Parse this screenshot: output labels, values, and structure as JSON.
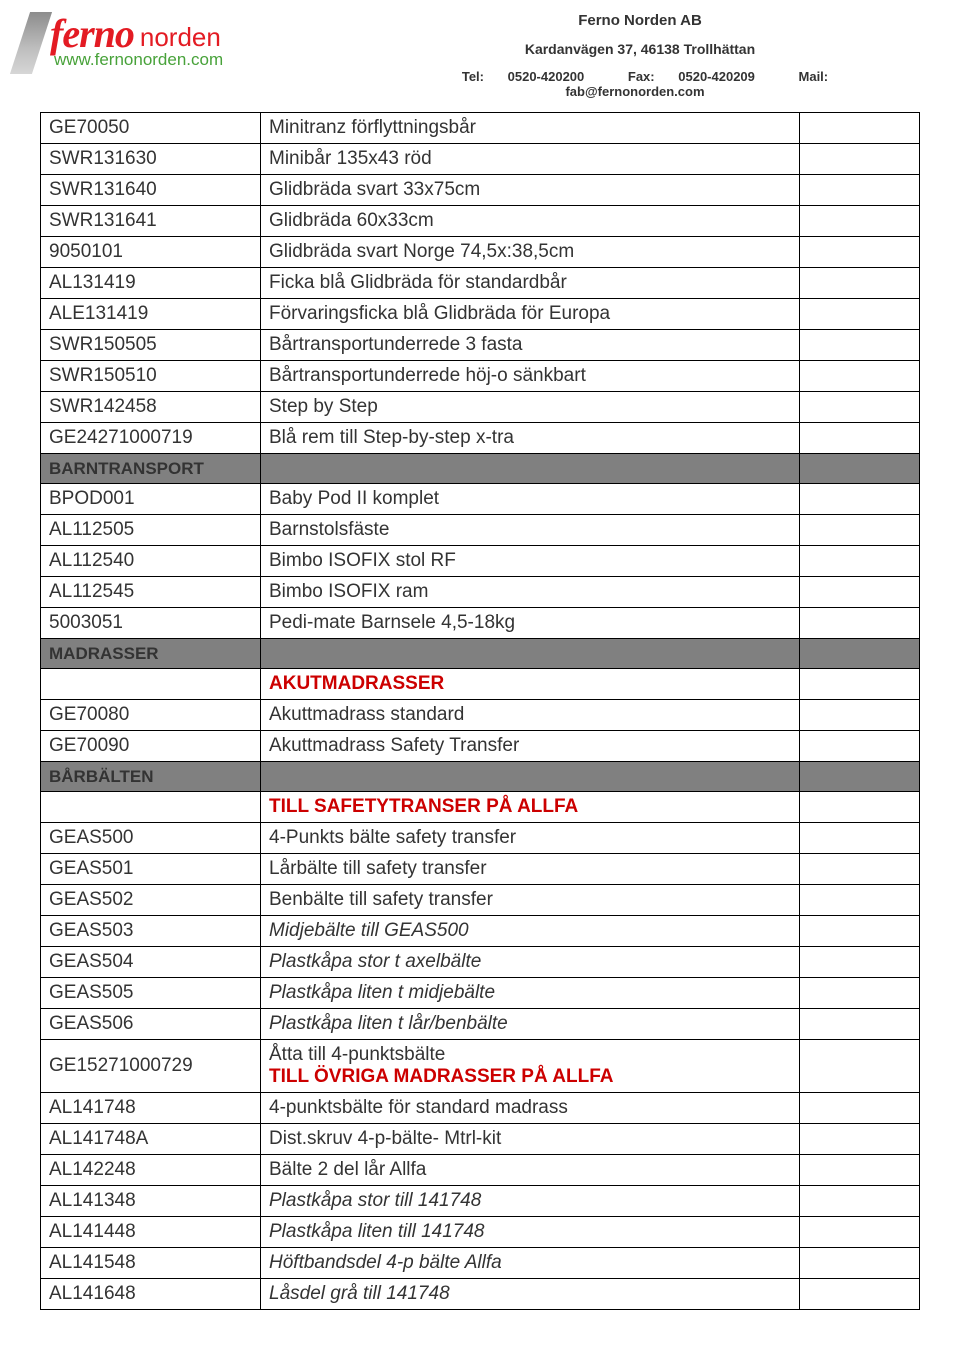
{
  "header": {
    "company": "Ferno Norden AB",
    "address": "Kardanvägen 37, 46138 Trollhättan",
    "tel_label": "Tel:",
    "tel": "0520-420200",
    "fax_label": "Fax:",
    "fax": "0520-420209",
    "mail_label": "Mail:",
    "mail": "fab@fernonorden.com",
    "logo_main": "ferno",
    "logo_sub": "norden",
    "logo_url": "www.fernonorden.com"
  },
  "rows": [
    {
      "type": "item",
      "code": "GE70050",
      "desc": "Minitranz förflyttningsbår"
    },
    {
      "type": "item",
      "code": "SWR131630",
      "desc": "Minibår 135x43 röd"
    },
    {
      "type": "item",
      "code": "SWR131640",
      "desc": "Glidbräda svart 33x75cm"
    },
    {
      "type": "item",
      "code": "SWR131641",
      "desc": "Glidbräda 60x33cm"
    },
    {
      "type": "item",
      "code": "9050101",
      "desc": "Glidbräda svart Norge  74,5x:38,5cm"
    },
    {
      "type": "item",
      "code": "AL131419",
      "desc": "Ficka blå Glidbräda för standardbår"
    },
    {
      "type": "item",
      "code": "ALE131419",
      "desc": "Förvaringsficka blå Glidbräda för Europa"
    },
    {
      "type": "item",
      "code": "SWR150505",
      "desc": "Bårtransportunderrede 3 fasta"
    },
    {
      "type": "item",
      "code": "SWR150510",
      "desc": "Bårtransportunderrede höj-o sänkbart"
    },
    {
      "type": "item",
      "code": "SWR142458",
      "desc": "Step by Step"
    },
    {
      "type": "item",
      "code": "GE24271000719",
      "desc": "Blå rem till Step-by-step x-tra"
    },
    {
      "type": "section",
      "label": "BARNTRANSPORT"
    },
    {
      "type": "item",
      "code": "BPOD001",
      "desc": "Baby Pod II komplet"
    },
    {
      "type": "item",
      "code": "AL112505",
      "desc": "Barnstolsfäste"
    },
    {
      "type": "item",
      "code": "AL112540",
      "desc": "Bimbo ISOFIX stol RF"
    },
    {
      "type": "item",
      "code": "AL112545",
      "desc": "Bimbo ISOFIX ram"
    },
    {
      "type": "item",
      "code": "5003051",
      "desc": "Pedi-mate Barnsele 4,5-18kg"
    },
    {
      "type": "section",
      "label": "MADRASSER"
    },
    {
      "type": "heading",
      "text": "AKUTMADRASSER"
    },
    {
      "type": "item",
      "code": "GE70080",
      "desc": "Akuttmadrass standard"
    },
    {
      "type": "item",
      "code": "GE70090",
      "desc": "Akuttmadrass Safety Transfer"
    },
    {
      "type": "section",
      "label": "BÅRBÄLTEN"
    },
    {
      "type": "heading",
      "text": "TILL  SAFETYTRANSER  PÅ  ALLFA"
    },
    {
      "type": "item",
      "code": "GEAS500",
      "desc": "4-Punkts bälte safety transfer"
    },
    {
      "type": "item",
      "code": "GEAS501",
      "desc": "Lårbälte till safety transfer"
    },
    {
      "type": "item",
      "code": "GEAS502",
      "desc": "Benbälte till safety transfer"
    },
    {
      "type": "item",
      "code": "GEAS503",
      "desc": "Midjebälte till GEAS500",
      "italic": true
    },
    {
      "type": "item",
      "code": "GEAS504",
      "desc": "Plastkåpa stor t axelbälte",
      "italic": true
    },
    {
      "type": "item",
      "code": "GEAS505",
      "desc": "Plastkåpa liten t midjebälte",
      "italic": true
    },
    {
      "type": "item",
      "code": "GEAS506",
      "desc": "Plastkåpa liten t lår/benbälte",
      "italic": true
    },
    {
      "type": "item",
      "code": "GE15271000729",
      "desc": "Åtta till 4-punktsbälte",
      "heading_below": "TILL ÖVRIGA  MADRASSER PÅ ALLFA"
    },
    {
      "type": "item",
      "code": "AL141748",
      "desc": "4-punktsbälte för standard madrass"
    },
    {
      "type": "item",
      "code": "AL141748A",
      "desc": "Dist.skruv 4-p-bälte- Mtrl-kit"
    },
    {
      "type": "item",
      "code": "AL142248",
      "desc": "Bälte 2 del lår Allfa"
    },
    {
      "type": "item",
      "code": "AL141348",
      "desc": "Plastkåpa stor till 141748",
      "italic": true
    },
    {
      "type": "item",
      "code": "AL141448",
      "desc": "Plastkåpa liten till 141748",
      "italic": true
    },
    {
      "type": "item",
      "code": "AL141548",
      "desc": "Höftbandsdel  4-p bälte Allfa",
      "italic": true
    },
    {
      "type": "item",
      "code": "AL141648",
      "desc": "Låsdel grå till 141748",
      "italic": true
    }
  ],
  "colors": {
    "section_bg": "#808080",
    "section_fg": "#ffffff",
    "heading_fg": "#cc0000",
    "border": "#000000",
    "logo_red": "#e31b23",
    "logo_green": "#48a23a"
  }
}
